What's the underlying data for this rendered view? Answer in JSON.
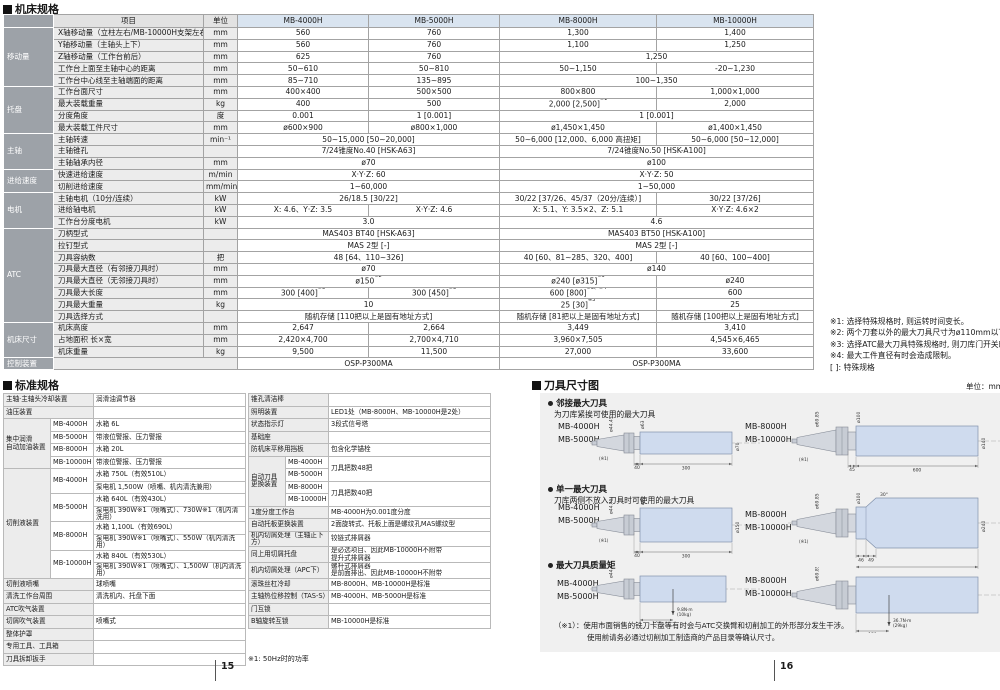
{
  "machine_specs": {
    "title": "机床规格",
    "header": {
      "item": "项目",
      "unit": "单位",
      "models": [
        "MB-4000H",
        "MB-5000H",
        "MB-8000H",
        "MB-10000H"
      ]
    },
    "rows": [
      {
        "group": "移动量",
        "gspan": 5,
        "item": "X轴移动量（立柱左右/MB-10000H支架左右）",
        "unit": "mm",
        "cells": [
          {
            "t": "560"
          },
          {
            "t": "760"
          },
          {
            "t": "1,300"
          },
          {
            "t": "1,400"
          }
        ]
      },
      {
        "item": "Y轴移动量（主轴头上下）",
        "unit": "mm",
        "cells": [
          {
            "t": "560"
          },
          {
            "t": "760"
          },
          {
            "t": "1,100"
          },
          {
            "t": "1,250"
          }
        ]
      },
      {
        "item": "Z轴移动量（工作台前后）",
        "unit": "mm",
        "cells": [
          {
            "t": "625"
          },
          {
            "t": "760"
          },
          {
            "t": "1,250",
            "s": 2
          }
        ]
      },
      {
        "item": "工作台上面至主轴中心的距离",
        "unit": "mm",
        "cells": [
          {
            "t": "50~610"
          },
          {
            "t": "50~810"
          },
          {
            "t": "50~1,150"
          },
          {
            "t": "-20~1,230"
          }
        ]
      },
      {
        "item": "工作台中心线至主轴端面的距离",
        "unit": "mm",
        "cells": [
          {
            "t": "85~710"
          },
          {
            "t": "135~895"
          },
          {
            "t": "100~1,350",
            "s": 2
          }
        ]
      },
      {
        "group": "托盘",
        "gspan": 4,
        "item": "工作台面尺寸",
        "unit": "mm",
        "cells": [
          {
            "t": "400×400"
          },
          {
            "t": "500×500"
          },
          {
            "t": "800×800"
          },
          {
            "t": "1,000×1,000"
          }
        ]
      },
      {
        "item": "最大装载重量",
        "unit": "kg",
        "cells": [
          {
            "t": "400"
          },
          {
            "t": "500"
          },
          {
            "t": "2,000 [2,500]",
            "sup": "※1"
          },
          {
            "t": "2,000"
          }
        ]
      },
      {
        "item": "分度角度",
        "unit": "度",
        "cells": [
          {
            "t": "0.001"
          },
          {
            "t": "1 [0.001]"
          },
          {
            "t": "1 [0.001]",
            "s": 2
          }
        ]
      },
      {
        "item": "最大装载工件尺寸",
        "unit": "mm",
        "cells": [
          {
            "t": "ø600×900"
          },
          {
            "t": "ø800×1,000"
          },
          {
            "t": "ø1,450×1,450"
          },
          {
            "t": "ø1,400×1,450"
          }
        ]
      },
      {
        "group": "主轴",
        "gspan": 3,
        "item": "主轴转速",
        "unit": "min⁻¹",
        "cells": [
          {
            "t": "50~15,000 [50~20,000]",
            "s": 2
          },
          {
            "t": "50~6,000 [12,000、6,000 高扭矩]"
          },
          {
            "t": "50~6,000 [50~12,000]"
          }
        ]
      },
      {
        "item": "主轴锥孔",
        "unit": "",
        "cells": [
          {
            "t": "7/24锥度No.40 [HSK-A63]",
            "s": 2
          },
          {
            "t": "7/24锥度No.50 [HSK-A100]",
            "s": 2
          }
        ]
      },
      {
        "item": "主轴轴承内径",
        "unit": "mm",
        "cells": [
          {
            "t": "ø70",
            "s": 2
          },
          {
            "t": "ø100",
            "s": 2
          }
        ]
      },
      {
        "group": "进给速度",
        "gspan": 2,
        "item": "快速进给速度",
        "unit": "m/min",
        "cells": [
          {
            "t": "X·Y·Z: 60",
            "s": 2
          },
          {
            "t": "X·Y·Z: 50",
            "s": 2
          }
        ]
      },
      {
        "item": "切削进给速度",
        "unit": "mm/min",
        "cells": [
          {
            "t": "1~60,000",
            "s": 2
          },
          {
            "t": "1~50,000",
            "s": 2
          }
        ]
      },
      {
        "group": "电机",
        "gspan": 3,
        "item": "主轴电机（10分/连续）",
        "unit": "kW",
        "cells": [
          {
            "t": "26/18.5 [30/22]",
            "s": 2
          },
          {
            "t": "30/22 [37/26、45/37（20分/连续）]"
          },
          {
            "t": "30/22 [37/26]"
          }
        ]
      },
      {
        "item": "进给轴电机",
        "unit": "kW",
        "cells": [
          {
            "t": "X: 4.6、Y·Z: 3.5"
          },
          {
            "t": "X·Y·Z: 4.6"
          },
          {
            "t": "X: 5.1、Y: 3.5×2、Z: 5.1"
          },
          {
            "t": "X·Y·Z: 4.6×2"
          }
        ]
      },
      {
        "item": "工作台分度电机",
        "unit": "kW",
        "cells": [
          {
            "t": "3.0",
            "s": 2
          },
          {
            "t": "4.6",
            "s": 2
          }
        ]
      },
      {
        "group": "ATC",
        "gspan": 8,
        "item": "刀柄型式",
        "unit": "",
        "cells": [
          {
            "t": "MAS403 BT40 [HSK-A63]",
            "s": 2
          },
          {
            "t": "MAS403 BT50 [HSK-A100]",
            "s": 2
          }
        ]
      },
      {
        "item": "拉钉型式",
        "unit": "",
        "cells": [
          {
            "t": "MAS 2型 [-]",
            "s": 2
          },
          {
            "t": "MAS 2型 [-]",
            "s": 2
          }
        ]
      },
      {
        "item": "刀具容纳数",
        "unit": "把",
        "cells": [
          {
            "t": "48 [64、110~326]",
            "s": 2
          },
          {
            "t": "40 [60、81~285、320、400]"
          },
          {
            "t": "40 [60、100~400]"
          }
        ]
      },
      {
        "item": "刀具最大直径（有邻接刀具时）",
        "unit": "mm",
        "cells": [
          {
            "t": "ø70",
            "s": 2
          },
          {
            "t": "ø140",
            "s": 2
          }
        ]
      },
      {
        "item": "刀具最大直径（无邻接刀具时）",
        "unit": "mm",
        "cells": [
          {
            "t": "ø150",
            "sup": "※2",
            "s": 2
          },
          {
            "t": "ø240 [ø315]",
            "sup": "※3"
          },
          {
            "t": "ø240"
          }
        ]
      },
      {
        "item": "刀具最大长度",
        "unit": "mm",
        "cells": [
          {
            "t": "300 [400]",
            "sup": "※3"
          },
          {
            "t": "300 [450]",
            "sup": "※3"
          },
          {
            "t": "600 [800]",
            "sup": "※3、※4"
          },
          {
            "t": "600"
          }
        ]
      },
      {
        "item": "刀具最大重量",
        "unit": "kg",
        "cells": [
          {
            "t": "10",
            "s": 2
          },
          {
            "t": "25 [30]",
            "sup": "※3"
          },
          {
            "t": "25"
          }
        ]
      },
      {
        "item": "刀具选择方式",
        "unit": "",
        "cells": [
          {
            "t": "随机存储 [110把以上是固有地址方式]",
            "s": 2
          },
          {
            "t": "随机存储 [81把以上是固有地址方式]"
          },
          {
            "t": "随机存储 [100把以上是固有地址方式]"
          }
        ]
      },
      {
        "group": "机床尺寸",
        "gspan": 3,
        "item": "机床高度",
        "unit": "mm",
        "cells": [
          {
            "t": "2,647"
          },
          {
            "t": "2,664"
          },
          {
            "t": "3,449"
          },
          {
            "t": "3,410"
          }
        ]
      },
      {
        "item": "占地面积 长×宽",
        "unit": "mm",
        "cells": [
          {
            "t": "2,420×4,700"
          },
          {
            "t": "2,700×4,710"
          },
          {
            "t": "3,960×7,505"
          },
          {
            "t": "4,545×6,465"
          }
        ]
      },
      {
        "item": "机床重量",
        "unit": "kg",
        "cells": [
          {
            "t": "9,500"
          },
          {
            "t": "11,500"
          },
          {
            "t": "27,000"
          },
          {
            "t": "33,600"
          }
        ]
      },
      {
        "group": "控制装置",
        "gspan": 1,
        "item": null,
        "unit": null,
        "cells": [
          {
            "t": "OSP-P300MA",
            "s": 2
          },
          {
            "t": "OSP-P300MA",
            "s": 2
          }
        ]
      }
    ],
    "notes": [
      "※1: 选择特殊规格时, 则运转时间变长。",
      "※2: 两个刀套以外的最大刀具尺寸为ø110mm以下。",
      "※3: 选择ATC最大刀具特殊规格时, 则刀库门开关时间变长。",
      "※4: 最大工件直径有时会造成限制。",
      "[ ]: 特殊规格"
    ]
  },
  "standard_specs": {
    "title": "标准规格",
    "left_rows": [
      [
        {
          "t": "主轴·主轴头冷却装置",
          "c": 2,
          "cls": "lbl"
        },
        {
          "t": "润滑油调节器",
          "cls": "val"
        }
      ],
      [
        {
          "t": "油压装置",
          "c": 2,
          "cls": "lbl"
        },
        {
          "t": "",
          "cls": "val"
        }
      ],
      [
        {
          "t": "集中润滑\n自动加油装置",
          "r": 4,
          "cls": "lbl"
        },
        {
          "t": "MB-4000H",
          "cls": "mdl"
        },
        {
          "t": "水箱 6L",
          "cls": "val"
        }
      ],
      [
        {
          "t": "MB-5000H",
          "cls": "mdl"
        },
        {
          "t": "带液位警报、压力警报",
          "cls": "val"
        }
      ],
      [
        {
          "t": "MB-8000H",
          "cls": "mdl"
        },
        {
          "t": "水箱 20L",
          "cls": "val"
        }
      ],
      [
        {
          "t": "MB-10000H",
          "cls": "mdl"
        },
        {
          "t": "带液位警报、压力警报",
          "cls": "val"
        }
      ],
      [
        {
          "t": "切削液装置",
          "r": 8,
          "cls": "lbl"
        },
        {
          "t": "MB-4000H",
          "r": 2,
          "cls": "mdl"
        },
        {
          "t": "水箱 750L（有效510L）",
          "cls": "val"
        }
      ],
      [
        {
          "t": "泵电机 1,500W（喷嘴、机内清洗兼用）",
          "cls": "val"
        }
      ],
      [
        {
          "t": "MB-5000H",
          "r": 2,
          "cls": "mdl"
        },
        {
          "t": "水箱 640L（有效430L）",
          "cls": "val"
        }
      ],
      [
        {
          "t": "泵电机 390W※1（喷嘴式）、730W※1（机内清洗用）",
          "cls": "val"
        }
      ],
      [
        {
          "t": "MB-8000H",
          "r": 2,
          "cls": "mdl"
        },
        {
          "t": "水箱 1,100L（有效690L）",
          "cls": "val"
        }
      ],
      [
        {
          "t": "泵电机 390W※1（喷嘴式）、550W（机内清洗用）",
          "cls": "val"
        }
      ],
      [
        {
          "t": "MB-10000H",
          "r": 2,
          "cls": "mdl"
        },
        {
          "t": "水箱 840L（有效530L）",
          "cls": "val"
        }
      ],
      [
        {
          "t": "泵电机 390W※1（喷嘴式）、1,500W（机内清洗用）",
          "cls": "val"
        }
      ],
      [
        {
          "t": "切削液喷嘴",
          "c": 2,
          "cls": "lbl"
        },
        {
          "t": "球喷嘴",
          "cls": "val"
        }
      ],
      [
        {
          "t": "清洗工作台周围",
          "c": 2,
          "cls": "lbl"
        },
        {
          "t": "清洗机内、托盘下面",
          "cls": "val"
        }
      ],
      [
        {
          "t": "ATC吹气装置",
          "c": 2,
          "cls": "lbl"
        },
        {
          "t": "",
          "cls": "val"
        }
      ],
      [
        {
          "t": "切屑吹气装置",
          "c": 2,
          "cls": "lbl"
        },
        {
          "t": "喷嘴式",
          "cls": "val"
        }
      ],
      [
        {
          "t": "整体护罩",
          "c": 2,
          "cls": "lbl"
        },
        {
          "t": "",
          "cls": "val"
        }
      ],
      [
        {
          "t": "专用工具、工具箱",
          "c": 2,
          "cls": "lbl"
        },
        {
          "t": "",
          "cls": "val"
        }
      ],
      [
        {
          "t": "刀具拆卸扳手",
          "c": 2,
          "cls": "lbl"
        },
        {
          "t": "",
          "cls": "val"
        }
      ]
    ],
    "right_rows": [
      [
        {
          "t": "锥孔清洁棒",
          "c": 2,
          "cls": "lbl"
        },
        {
          "t": "",
          "cls": "val"
        }
      ],
      [
        {
          "t": "照明装置",
          "c": 2,
          "cls": "lbl"
        },
        {
          "t": "LED1处（MB-8000H、MB-10000H是2处）",
          "cls": "val"
        }
      ],
      [
        {
          "t": "状态指示灯",
          "c": 2,
          "cls": "lbl"
        },
        {
          "t": "3段式信号塔",
          "cls": "val"
        }
      ],
      [
        {
          "t": "基础座",
          "c": 2,
          "cls": "lbl"
        },
        {
          "t": "",
          "cls": "val"
        }
      ],
      [
        {
          "t": "防机床平移用挡板",
          "c": 2,
          "cls": "lbl"
        },
        {
          "t": "包含化学锚栓",
          "cls": "val"
        }
      ],
      [
        {
          "t": "自动刀具\n更换装置",
          "r": 4,
          "cls": "lbl"
        },
        {
          "t": "MB-4000H",
          "cls": "mdl"
        },
        {
          "t": "刀具把数48把",
          "r": 2,
          "cls": "val"
        }
      ],
      [
        {
          "t": "MB-5000H",
          "cls": "mdl"
        }
      ],
      [
        {
          "t": "MB-8000H",
          "cls": "mdl"
        },
        {
          "t": "刀具把数40把",
          "r": 2,
          "cls": "val"
        }
      ],
      [
        {
          "t": "MB-10000H",
          "cls": "mdl"
        }
      ],
      [
        {
          "t": "1度分度工作台",
          "c": 2,
          "cls": "lbl"
        },
        {
          "t": "MB-4000H为0.001度分度",
          "cls": "val"
        }
      ],
      [
        {
          "t": "自动托板更换装置",
          "c": 2,
          "cls": "lbl"
        },
        {
          "t": "2面旋转式、托板上面是螺纹孔MAS螺纹型",
          "cls": "val"
        }
      ],
      [
        {
          "t": "机内切屑处理（主轴正下方）",
          "c": 2,
          "cls": "lbl"
        },
        {
          "t": "铰链式排屑器",
          "cls": "val"
        }
      ],
      [
        {
          "t": "同上用切屑托盘",
          "c": 2,
          "cls": "lbl"
        },
        {
          "t": "是必选项目、因此MB-10000H不附带\n提升式排屑器",
          "cls": "val"
        }
      ],
      [
        {
          "t": "机内切屑处理（APC下）",
          "c": 2,
          "cls": "lbl"
        },
        {
          "t": "螺杆式排屑器\n是前面排出、因此MB-10000H不附带",
          "cls": "val"
        }
      ],
      [
        {
          "t": "滚珠丝杠冷却",
          "c": 2,
          "cls": "lbl"
        },
        {
          "t": "MB-8000H、MB-10000H是标准",
          "cls": "val"
        }
      ],
      [
        {
          "t": "主轴热位移控制（TAS-S）",
          "c": 2,
          "cls": "lbl"
        },
        {
          "t": "MB-4000H、MB-5000H是标准",
          "cls": "val"
        }
      ],
      [
        {
          "t": "门互锁",
          "c": 2,
          "cls": "lbl"
        },
        {
          "t": "",
          "cls": "val"
        }
      ],
      [
        {
          "t": "B轴旋转互锁",
          "c": 2,
          "cls": "lbl"
        },
        {
          "t": "MB-10000H是标准",
          "cls": "val"
        }
      ]
    ],
    "footnote": "※1: 50Hz时的功率"
  },
  "tool_diagrams": {
    "title": "刀具尺寸图",
    "unit_label": "单位：mm",
    "sections": [
      {
        "title": "邻接最大刀具",
        "subtitle": "为刀库紧挨可使用的最大刀具",
        "diagrams": [
          {
            "models": "MB-4000H\nMB-5000H",
            "dims": {
              "shank_dia": "ø44.45",
              "flange_dia": "ø63",
              "body_dia": "ø70",
              "front_len": "40",
              "length": "300",
              "note": "(※1)"
            }
          },
          {
            "models": "MB-8000H\nMB-10000H",
            "dims": {
              "shank_dia": "ø69.85",
              "flange_dia": "ø100",
              "body_dia": "ø140",
              "front_len": "45",
              "length": "600",
              "note": "(※1)"
            }
          }
        ]
      },
      {
        "title": "单一最大刀具",
        "subtitle": "刀库两侧不放入刀具时可使用的最大刀具",
        "diagrams": [
          {
            "models": "MB-4000H\nMB-5000H",
            "dims": {
              "shank_dia": "ø44.45",
              "flange_dia": "ø63",
              "body_dia": "ø150",
              "front_len": "40",
              "length": "300",
              "note": "(※1)"
            }
          },
          {
            "models": "MB-8000H\nMB-10000H",
            "dims": {
              "shank_dia": "ø69.85",
              "flange_dia": "ø100",
              "body_dia": "ø240",
              "front_len": "46",
              "front_len2": "49",
              "angle": "30°",
              "length": "600",
              "note": "(※1)"
            }
          }
        ]
      },
      {
        "title": "最大刀具质量矩",
        "subtitle": "",
        "diagrams": [
          {
            "models": "MB-4000H\nMB-5000H",
            "dims": {
              "shank_dia": "ø44.45",
              "cg_dist": "106",
              "moment": "9.8N·m",
              "mass": "(10kg)"
            }
          },
          {
            "models": "MB-8000H\nMB-10000H",
            "dims": {
              "shank_dia": "ø69.85",
              "cg_dist": "159",
              "moment": "36.7N·m",
              "mass": "(29kg)"
            }
          }
        ]
      }
    ],
    "footnote_lines": [
      "（※1）：使用市面销售的铣刀卡盘等有时会与ATC交换臂和切削加工的外形部分发生干涉。",
      "使用前请务必通过切削加工制造商的产品目录等确认尺寸。"
    ]
  },
  "footer": {
    "left_page": "15",
    "right_page": "16"
  }
}
